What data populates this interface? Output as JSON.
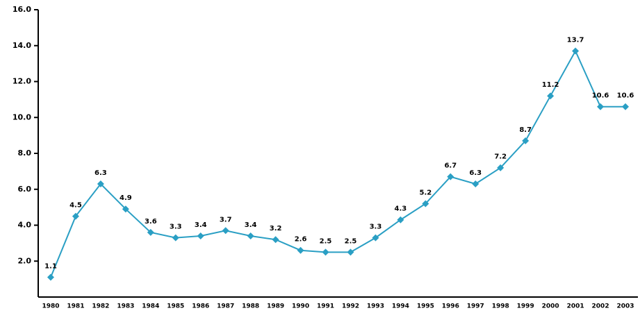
{
  "chart_data": {
    "type": "line",
    "categories": [
      "1980",
      "1981",
      "1982",
      "1983",
      "1984",
      "1985",
      "1986",
      "1987",
      "1988",
      "1989",
      "1990",
      "1991",
      "1992",
      "1993",
      "1994",
      "1995",
      "1996",
      "1997",
      "1998",
      "1999",
      "2000",
      "2001",
      "2002",
      "2003"
    ],
    "series": [
      {
        "color": "#2a9fc4",
        "values": [
          1.1,
          4.5,
          6.3,
          4.9,
          3.6,
          3.3,
          3.4,
          3.7,
          3.4,
          3.2,
          2.6,
          2.5,
          2.5,
          3.3,
          4.3,
          5.2,
          6.7,
          6.3,
          7.2,
          8.7,
          11.2,
          13.7,
          10.6,
          10.6
        ]
      }
    ],
    "ylim": [
      0,
      16
    ],
    "yticks": [
      {
        "value": 2,
        "label": "2.0"
      },
      {
        "value": 4,
        "label": "4.0"
      },
      {
        "value": 6,
        "label": "6.0"
      },
      {
        "value": 8,
        "label": "8.0"
      },
      {
        "value": 10,
        "label": "10.0"
      },
      {
        "value": 12,
        "label": "12.0"
      },
      {
        "value": 14,
        "label": "14.0"
      },
      {
        "value": 16,
        "label": "16.0"
      }
    ],
    "grid": false
  }
}
